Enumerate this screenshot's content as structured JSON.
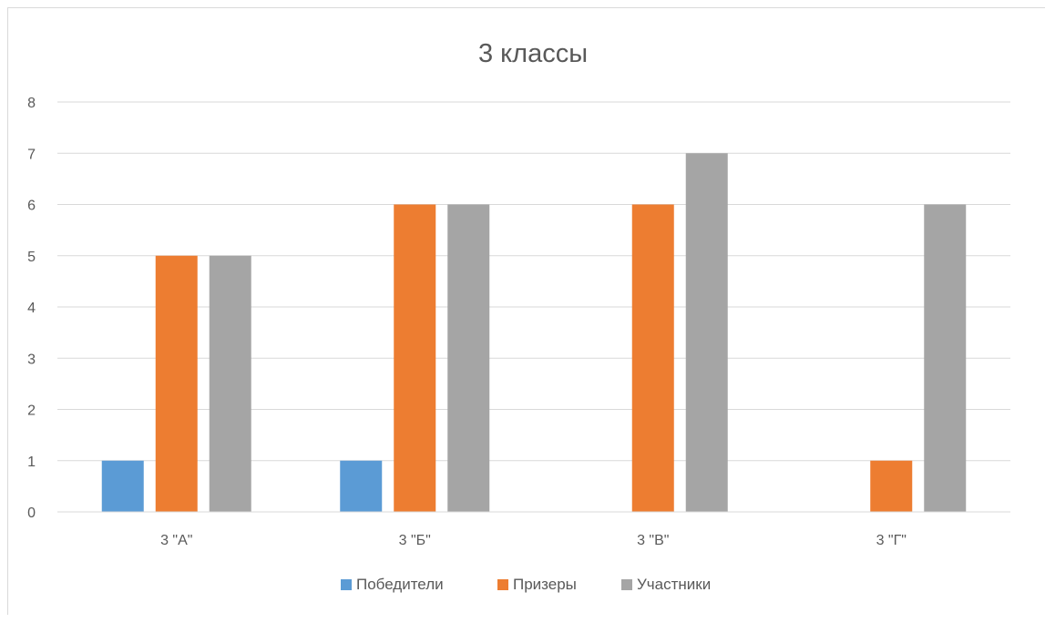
{
  "chart_data": {
    "type": "bar",
    "title": "3 классы",
    "xlabel": "",
    "ylabel": "",
    "categories": [
      "3 \"А\"",
      "3 \"Б\"",
      "3 \"В\"",
      "3 \"Г\""
    ],
    "series": [
      {
        "name": "Победители",
        "color": "#5b9bd5",
        "values": [
          1,
          1,
          0,
          0
        ]
      },
      {
        "name": "Призеры",
        "color": "#ed7d31",
        "values": [
          5,
          6,
          6,
          1
        ]
      },
      {
        "name": "Участники",
        "color": "#a5a5a5",
        "values": [
          5,
          6,
          7,
          6
        ]
      }
    ],
    "ylim": [
      0,
      8
    ],
    "yticks": [
      "0",
      "1",
      "2",
      "3",
      "4",
      "5",
      "6",
      "7",
      "8"
    ],
    "grid": true,
    "legend_position": "bottom"
  }
}
